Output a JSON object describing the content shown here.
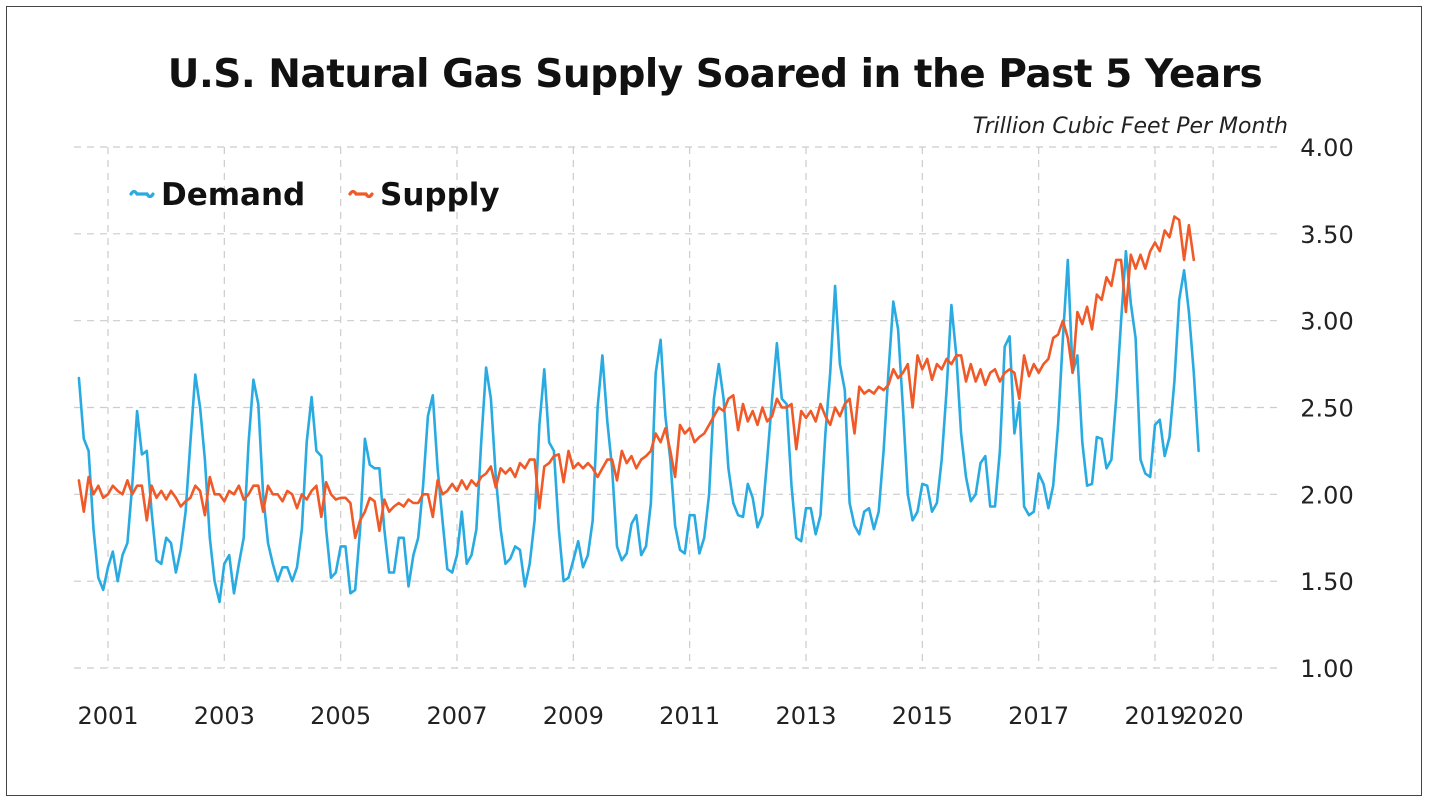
{
  "chart_data": {
    "type": "line",
    "title": "U.S. Natural Gas Supply Soared in the Past 5 Years",
    "ylabel": "Trillion Cubic Feet Per Month",
    "xlabel": "",
    "ylim": [
      1.0,
      4.0
    ],
    "y_ticks": [
      "1.00",
      "1.50",
      "2.00",
      "2.50",
      "3.00",
      "3.50",
      "4.00"
    ],
    "x_ticks": [
      "2001",
      "2003",
      "2005",
      "2007",
      "2009",
      "2011",
      "2013",
      "2015",
      "2017",
      "2019",
      "2020"
    ],
    "x_start": "2000-07",
    "x_step": "monthly",
    "grid": true,
    "legend": "top-left",
    "colors": {
      "Demand": "#29abe2",
      "Supply": "#f05a28",
      "grid": "#cccccc"
    },
    "series": [
      {
        "name": "Demand",
        "values": [
          2.67,
          2.32,
          2.25,
          1.8,
          1.52,
          1.45,
          1.58,
          1.67,
          1.5,
          1.65,
          1.72,
          2.05,
          2.48,
          2.23,
          2.25,
          1.9,
          1.62,
          1.6,
          1.75,
          1.72,
          1.55,
          1.68,
          1.9,
          2.3,
          2.69,
          2.5,
          2.2,
          1.75,
          1.5,
          1.38,
          1.6,
          1.65,
          1.43,
          1.6,
          1.75,
          2.3,
          2.66,
          2.52,
          2.0,
          1.72,
          1.6,
          1.5,
          1.58,
          1.58,
          1.5,
          1.58,
          1.8,
          2.3,
          2.56,
          2.25,
          2.22,
          1.8,
          1.52,
          1.55,
          1.7,
          1.7,
          1.43,
          1.45,
          1.8,
          2.32,
          2.17,
          2.15,
          2.15,
          1.8,
          1.55,
          1.55,
          1.75,
          1.75,
          1.47,
          1.65,
          1.75,
          2.05,
          2.45,
          2.57,
          2.15,
          1.85,
          1.57,
          1.55,
          1.65,
          1.9,
          1.6,
          1.65,
          1.8,
          2.3,
          2.73,
          2.55,
          2.1,
          1.8,
          1.6,
          1.63,
          1.7,
          1.68,
          1.47,
          1.6,
          1.85,
          2.4,
          2.72,
          2.3,
          2.25,
          1.8,
          1.5,
          1.52,
          1.62,
          1.73,
          1.58,
          1.65,
          1.85,
          2.5,
          2.8,
          2.42,
          2.15,
          1.7,
          1.62,
          1.66,
          1.83,
          1.88,
          1.65,
          1.7,
          1.95,
          2.7,
          2.89,
          2.45,
          2.2,
          1.82,
          1.68,
          1.66,
          1.88,
          1.88,
          1.66,
          1.75,
          2.0,
          2.55,
          2.75,
          2.55,
          2.15,
          1.95,
          1.88,
          1.87,
          2.06,
          1.98,
          1.81,
          1.88,
          2.2,
          2.55,
          2.87,
          2.55,
          2.52,
          2.05,
          1.75,
          1.73,
          1.92,
          1.92,
          1.77,
          1.88,
          2.35,
          2.7,
          3.2,
          2.75,
          2.6,
          1.95,
          1.82,
          1.77,
          1.9,
          1.92,
          1.8,
          1.9,
          2.25,
          2.7,
          3.11,
          2.95,
          2.5,
          2.0,
          1.85,
          1.9,
          2.06,
          2.05,
          1.9,
          1.95,
          2.2,
          2.6,
          3.09,
          2.8,
          2.35,
          2.1,
          1.96,
          2.0,
          2.18,
          2.22,
          1.93,
          1.93,
          2.25,
          2.85,
          2.91,
          2.35,
          2.53,
          1.93,
          1.88,
          1.9,
          2.12,
          2.06,
          1.92,
          2.05,
          2.4,
          2.9,
          3.35,
          2.7,
          2.8,
          2.3,
          2.05,
          2.06,
          2.33,
          2.32,
          2.15,
          2.2,
          2.55,
          3.0,
          3.4,
          3.1,
          2.9,
          2.2,
          2.12,
          2.1,
          2.4,
          2.43,
          2.22,
          2.33,
          2.65,
          3.12,
          3.29,
          3.05,
          2.7,
          2.25
        ]
      },
      {
        "name": "Supply",
        "values": [
          2.08,
          1.9,
          2.1,
          2.0,
          2.05,
          1.98,
          2.0,
          2.05,
          2.02,
          2.0,
          2.08,
          2.0,
          2.05,
          2.05,
          1.85,
          2.05,
          1.98,
          2.02,
          1.97,
          2.02,
          1.98,
          1.93,
          1.96,
          1.98,
          2.05,
          2.02,
          1.88,
          2.1,
          2.0,
          2.0,
          1.96,
          2.02,
          2.0,
          2.05,
          1.97,
          2.0,
          2.05,
          2.05,
          1.9,
          2.05,
          2.0,
          2.0,
          1.96,
          2.02,
          2.0,
          1.92,
          2.0,
          1.97,
          2.02,
          2.05,
          1.87,
          2.07,
          2.0,
          1.97,
          1.98,
          1.98,
          1.95,
          1.75,
          1.85,
          1.9,
          1.98,
          1.96,
          1.79,
          1.97,
          1.9,
          1.93,
          1.95,
          1.93,
          1.97,
          1.95,
          1.95,
          2.0,
          2.0,
          1.87,
          2.08,
          2.0,
          2.02,
          2.06,
          2.02,
          2.08,
          2.03,
          2.08,
          2.05,
          2.1,
          2.12,
          2.16,
          2.04,
          2.15,
          2.12,
          2.15,
          2.1,
          2.18,
          2.15,
          2.2,
          2.2,
          1.92,
          2.16,
          2.18,
          2.22,
          2.23,
          2.07,
          2.25,
          2.15,
          2.18,
          2.15,
          2.18,
          2.15,
          2.1,
          2.15,
          2.2,
          2.2,
          2.08,
          2.25,
          2.18,
          2.22,
          2.15,
          2.2,
          2.22,
          2.25,
          2.35,
          2.3,
          2.38,
          2.25,
          2.1,
          2.4,
          2.35,
          2.38,
          2.3,
          2.33,
          2.35,
          2.4,
          2.45,
          2.5,
          2.48,
          2.55,
          2.57,
          2.37,
          2.52,
          2.42,
          2.48,
          2.4,
          2.5,
          2.42,
          2.45,
          2.55,
          2.5,
          2.5,
          2.52,
          2.26,
          2.48,
          2.44,
          2.48,
          2.42,
          2.52,
          2.45,
          2.4,
          2.5,
          2.45,
          2.52,
          2.55,
          2.35,
          2.62,
          2.58,
          2.6,
          2.58,
          2.62,
          2.6,
          2.63,
          2.72,
          2.67,
          2.7,
          2.75,
          2.5,
          2.8,
          2.72,
          2.78,
          2.66,
          2.75,
          2.72,
          2.78,
          2.75,
          2.8,
          2.8,
          2.65,
          2.75,
          2.65,
          2.72,
          2.63,
          2.7,
          2.72,
          2.65,
          2.7,
          2.72,
          2.7,
          2.55,
          2.8,
          2.68,
          2.75,
          2.7,
          2.75,
          2.78,
          2.9,
          2.92,
          3.0,
          2.9,
          2.7,
          3.05,
          2.98,
          3.08,
          2.95,
          3.15,
          3.12,
          3.25,
          3.2,
          3.35,
          3.35,
          3.05,
          3.38,
          3.3,
          3.38,
          3.3,
          3.4,
          3.45,
          3.4,
          3.52,
          3.48,
          3.6,
          3.58,
          3.35,
          3.55,
          3.35
        ]
      }
    ]
  }
}
